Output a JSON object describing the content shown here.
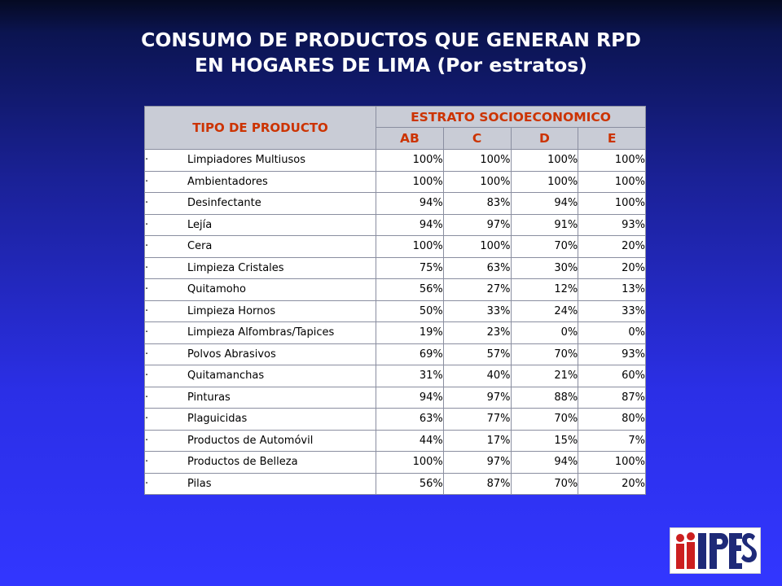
{
  "title": {
    "line1": "CONSUMO DE PRODUCTOS QUE GENERAN RPD",
    "line2": "EN HOGARES DE LIMA (Por estratos)"
  },
  "table": {
    "header_product": "TIPO DE PRODUCTO",
    "header_group": "ESTRATO SOCIOECONOMICO",
    "strata": [
      "AB",
      "C",
      "D",
      "E"
    ],
    "bullet": "·",
    "rows": [
      {
        "name": "Limpiadores Multiusos",
        "values": [
          "100%",
          "100%",
          "100%",
          "100%"
        ]
      },
      {
        "name": "Ambientadores",
        "values": [
          "100%",
          "100%",
          "100%",
          "100%"
        ]
      },
      {
        "name": "Desinfectante",
        "values": [
          "94%",
          "83%",
          "94%",
          "100%"
        ]
      },
      {
        "name": "Lejía",
        "values": [
          "94%",
          "97%",
          "91%",
          "93%"
        ]
      },
      {
        "name": "Cera",
        "values": [
          "100%",
          "100%",
          "70%",
          "20%"
        ]
      },
      {
        "name": "Limpieza Cristales",
        "values": [
          "75%",
          "63%",
          "30%",
          "20%"
        ]
      },
      {
        "name": "Quitamoho",
        "values": [
          "56%",
          "27%",
          "12%",
          "13%"
        ]
      },
      {
        "name": "Limpieza Hornos",
        "values": [
          "50%",
          "33%",
          "24%",
          "33%"
        ]
      },
      {
        "name": "Limpieza Alfombras/Tapices",
        "values": [
          "19%",
          "23%",
          "0%",
          "0%"
        ]
      },
      {
        "name": "Polvos Abrasivos",
        "values": [
          "69%",
          "57%",
          "70%",
          "93%"
        ]
      },
      {
        "name": "Quitamanchas",
        "values": [
          "31%",
          "40%",
          "21%",
          "60%"
        ]
      },
      {
        "name": "Pinturas",
        "values": [
          "94%",
          "97%",
          "88%",
          "87%"
        ]
      },
      {
        "name": "Plaguicidas",
        "values": [
          "63%",
          "77%",
          "70%",
          "80%"
        ]
      },
      {
        "name": "Productos de Automóvil",
        "values": [
          "44%",
          "17%",
          "15%",
          "7%"
        ]
      },
      {
        "name": "Productos de Belleza",
        "values": [
          "100%",
          "97%",
          "94%",
          "100%"
        ]
      },
      {
        "name": "Pilas",
        "values": [
          "56%",
          "87%",
          "70%",
          "20%"
        ]
      }
    ]
  },
  "logo": {
    "text": "IPES",
    "colors": {
      "figures": "#cc1f1f",
      "letters": "#1e2a78"
    }
  }
}
